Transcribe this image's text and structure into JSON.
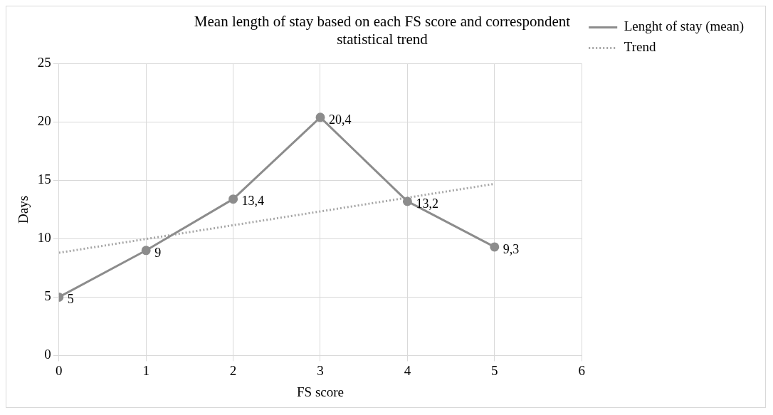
{
  "chart_data": {
    "type": "line",
    "title": "Mean length of stay based on each FS score and correspondent statistical trend",
    "xlabel": "FS score",
    "ylabel": "Days",
    "x": [
      0,
      1,
      2,
      3,
      4,
      5
    ],
    "series": [
      {
        "name": "Lenght of stay (mean)",
        "color": "#8c8c8c",
        "values": [
          5,
          9,
          13.4,
          20.4,
          13.2,
          9.3
        ],
        "value_labels": [
          "5",
          "9",
          "13,4",
          "20,4",
          "13,2",
          "9,3"
        ],
        "marker": "circle",
        "line_style": "solid"
      },
      {
        "name": "Trend",
        "color": "#a6a6a6",
        "x": [
          0,
          5
        ],
        "values": [
          8.8,
          14.7
        ],
        "marker": "none",
        "line_style": "dotted"
      }
    ],
    "xlim": [
      0,
      6
    ],
    "xticks": [
      0,
      1,
      2,
      3,
      4,
      5,
      6
    ],
    "ylim": [
      0,
      25
    ],
    "yticks": [
      0,
      5,
      10,
      15,
      20,
      25
    ],
    "grid": true,
    "legend": "right"
  }
}
